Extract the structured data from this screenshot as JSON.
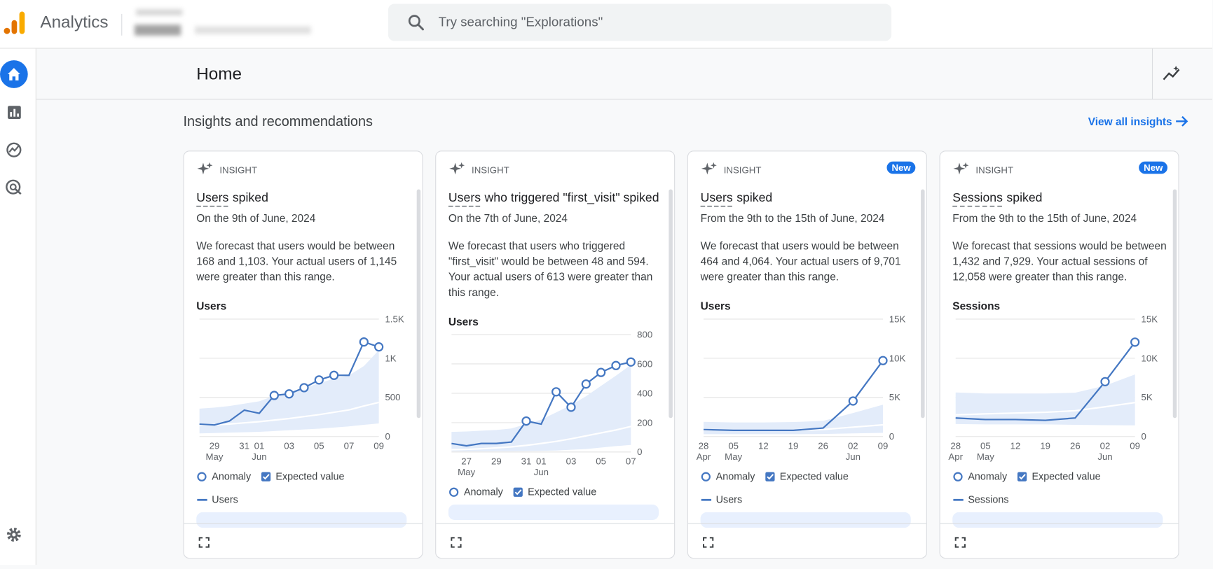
{
  "header": {
    "app_name": "Analytics",
    "search_placeholder": "Try searching \"Explorations\""
  },
  "page_title": "Home",
  "section": {
    "title": "Insights and recommendations",
    "link": "View all insights"
  },
  "cards": [
    {
      "tag": "INSIGHT",
      "title_term": "Users",
      "title_rest": "spiked",
      "date": "On the 9th of June, 2024",
      "body": "We forecast that users would be between 168 and 1,103. Your actual users of 1,145 were greater than this range.",
      "chart": {
        "type": "line",
        "title": "Users",
        "categories": [
          null,
          "29",
          null,
          "31",
          "01",
          null,
          "03",
          null,
          "05",
          null,
          "07",
          null,
          "09"
        ],
        "months": [
          null,
          "May",
          null,
          null,
          "Jun",
          null,
          null,
          null,
          null,
          null,
          null,
          null,
          null
        ],
        "values": [
          158,
          148,
          198,
          337,
          297,
          525,
          545,
          624,
          723,
          782,
          782,
          1208,
          1145
        ],
        "anomaly": [
          false,
          false,
          false,
          false,
          false,
          true,
          true,
          true,
          true,
          true,
          false,
          true,
          true
        ],
        "upper": [
          356,
          370,
          390,
          420,
          450,
          520,
          560,
          620,
          680,
          740,
          780,
          900,
          1103
        ],
        "lower": [
          40,
          45,
          50,
          55,
          60,
          70,
          80,
          90,
          100,
          115,
          130,
          150,
          168
        ],
        "expected": [
          140,
          150,
          160,
          175,
          190,
          210,
          230,
          255,
          280,
          310,
          340,
          390,
          436
        ],
        "ylim": [
          0,
          1500
        ],
        "yticks": [
          {
            "value": 1500,
            "label": "1.5K"
          },
          {
            "value": 1000,
            "label": "1K"
          },
          500,
          0
        ],
        "color": "#4477c2",
        "band_color": "#e3ecfa",
        "grid": true
      },
      "legend": [
        "Anomaly",
        "Expected value",
        "Users"
      ]
    },
    {
      "tag": "INSIGHT",
      "title_term": "Users",
      "title_rest": "who triggered \"first_visit\" spiked",
      "date": "On the 7th of June, 2024",
      "body": "We forecast that users who triggered \"first_visit\" would be between 48 and 594. Your actual users of 613 were greater than this range.",
      "chart": {
        "type": "line",
        "title": "Users",
        "categories": [
          null,
          "27",
          null,
          "29",
          null,
          "31",
          "01",
          null,
          "03",
          null,
          "05",
          null,
          "07"
        ],
        "months": [
          null,
          "May",
          null,
          null,
          null,
          null,
          "Jun",
          null,
          null,
          null,
          null,
          null,
          null
        ],
        "values": [
          58,
          42,
          58,
          58,
          68,
          211,
          190,
          410,
          305,
          463,
          542,
          589,
          613
        ],
        "anomaly": [
          false,
          false,
          false,
          false,
          false,
          true,
          false,
          true,
          true,
          true,
          true,
          true,
          true
        ],
        "upper": [
          137,
          140,
          145,
          150,
          160,
          190,
          220,
          270,
          320,
          380,
          450,
          520,
          594
        ],
        "lower": [
          5,
          5,
          5,
          6,
          6,
          7,
          8,
          10,
          15,
          20,
          30,
          40,
          48
        ],
        "expected": [
          16,
          18,
          22,
          28,
          35,
          45,
          58,
          72,
          90,
          110,
          130,
          150,
          174
        ],
        "ylim": [
          0,
          800
        ],
        "yticks": [
          800,
          600,
          400,
          200,
          0
        ],
        "color": "#4477c2",
        "band_color": "#e3ecfa",
        "grid": true
      },
      "legend": [
        "Anomaly",
        "Expected value"
      ]
    },
    {
      "tag": "INSIGHT",
      "badge": "New",
      "title_term": "Users",
      "title_rest": "spiked",
      "date": "From the 9th to the 15th of June, 2024",
      "body": "We forecast that users would be between 464 and 4,064. Your actual users of 9,701 were greater than this range.",
      "chart": {
        "type": "line",
        "title": "Users",
        "categories": [
          "28",
          "05",
          "12",
          "19",
          "26",
          "02",
          "09"
        ],
        "months": [
          "Apr",
          "May",
          null,
          null,
          null,
          "Jun",
          null
        ],
        "values": [
          888,
          790,
          790,
          790,
          1086,
          4541,
          9701
        ],
        "anomaly": [
          false,
          false,
          false,
          false,
          false,
          true,
          true
        ],
        "upper": [
          1875,
          1800,
          1800,
          1850,
          2000,
          3000,
          4064
        ],
        "lower": [
          300,
          300,
          300,
          300,
          320,
          400,
          464
        ],
        "expected": [
          800,
          800,
          800,
          820,
          900,
          1200,
          1500
        ],
        "ylim": [
          0,
          15000
        ],
        "yticks": [
          {
            "value": 15000,
            "label": "15K"
          },
          {
            "value": 10000,
            "label": "10K"
          },
          {
            "value": 5000,
            "label": "5K"
          },
          0
        ],
        "color": "#4477c2",
        "band_color": "#e3ecfa",
        "grid": true
      },
      "legend": [
        "Anomaly",
        "Expected value",
        "Users"
      ]
    },
    {
      "tag": "INSIGHT",
      "badge": "New",
      "title_term": "Sessions",
      "title_rest": "spiked",
      "date": "From the 9th to the 15th of June, 2024",
      "body": "We forecast that sessions would be between 1,432 and 7,929. Your actual sessions of 12,058 were greater than this range.",
      "chart": {
        "type": "line",
        "title": "Sessions",
        "categories": [
          "28",
          "05",
          "12",
          "19",
          "26",
          "02",
          "09"
        ],
        "months": [
          "Apr",
          "May",
          null,
          null,
          null,
          "Jun",
          null
        ],
        "values": [
          2369,
          2172,
          2172,
          2073,
          2369,
          7009,
          12058
        ],
        "anomaly": [
          false,
          false,
          false,
          false,
          false,
          true,
          true
        ],
        "upper": [
          5627,
          5500,
          5500,
          5500,
          5600,
          6500,
          7929
        ],
        "lower": [
          1600,
          1550,
          1550,
          1550,
          1500,
          1450,
          1432
        ],
        "expected": [
          2764,
          2900,
          3000,
          3100,
          3300,
          3800,
          4343
        ],
        "ylim": [
          0,
          15000
        ],
        "yticks": [
          {
            "value": 15000,
            "label": "15K"
          },
          {
            "value": 10000,
            "label": "10K"
          },
          {
            "value": 5000,
            "label": "5K"
          },
          0
        ],
        "color": "#4477c2",
        "band_color": "#e3ecfa",
        "grid": true
      },
      "legend": [
        "Anomaly",
        "Expected value",
        "Sessions"
      ]
    }
  ]
}
